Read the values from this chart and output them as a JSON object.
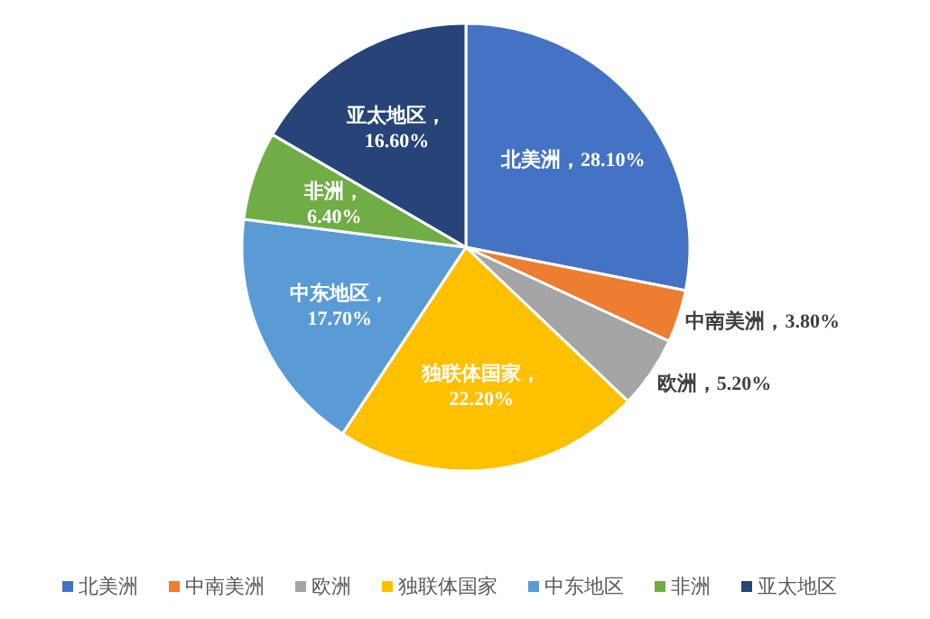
{
  "chart_data": {
    "type": "pie",
    "categories": [
      "北美洲",
      "中南美洲",
      "欧洲",
      "独联体国家",
      "中东地区",
      "非洲",
      "亚太地区"
    ],
    "values": [
      28.1,
      3.8,
      5.2,
      22.2,
      17.7,
      6.4,
      16.6
    ],
    "value_labels": [
      "北美洲，28.10%",
      "中南美洲，3.80%",
      "欧洲，5.20%",
      "独联体国家，\n22.20%",
      "中东地区，\n17.70%",
      "非洲，\n6.40%",
      "亚太地区，\n16.60%"
    ],
    "colors": [
      "#4472c4",
      "#ed7d31",
      "#a5a5a5",
      "#ffc000",
      "#5b9bd5",
      "#70ad47",
      "#264478"
    ],
    "legend": "bottom"
  }
}
